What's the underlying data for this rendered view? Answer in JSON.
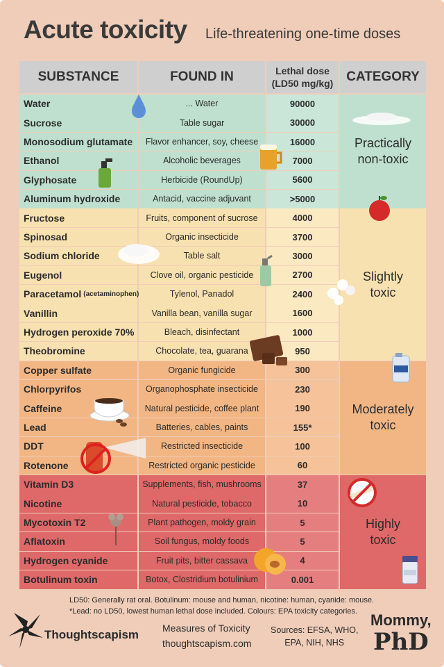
{
  "title": "Acute toxicity",
  "subtitle": "Life-threatening one-time doses",
  "headers": {
    "substance": "SUBSTANCE",
    "found_in": "FOUND IN",
    "lethal_dose_line1": "Lethal dose",
    "lethal_dose_line2": "(LD50 mg/kg)",
    "category": "CATEGORY"
  },
  "colors": {
    "practically_non_toxic": "#bfe0cf",
    "slightly_toxic": "#f8e1b0",
    "moderately_toxic": "#f2b684",
    "highly_toxic": "#df6868",
    "header": "#cfcfcf",
    "background": "#efcdb9"
  },
  "categories": [
    {
      "label": "Practically\nnon-toxic",
      "color": "#bfe0cf"
    },
    {
      "label": "Slightly\ntoxic",
      "color": "#f8e1b0"
    },
    {
      "label": "Moderately\ntoxic",
      "color": "#f2b684"
    },
    {
      "label": "Highly\ntoxic",
      "color": "#df6868"
    }
  ],
  "rows": [
    {
      "substance": "Water",
      "found_in": "... Water",
      "ld50": "90000",
      "category": 0
    },
    {
      "substance": "Sucrose",
      "found_in": "Table sugar",
      "ld50": "30000",
      "category": 0
    },
    {
      "substance": "Monosodium glutamate",
      "found_in": "Flavor enhancer, soy, cheese",
      "ld50": "16000",
      "category": 0
    },
    {
      "substance": "Ethanol",
      "found_in": "Alcoholic beverages",
      "ld50": "7000",
      "category": 0
    },
    {
      "substance": "Glyphosate",
      "found_in": "Herbicide (RoundUp)",
      "ld50": "5600",
      "category": 0
    },
    {
      "substance": "Aluminum hydroxide",
      "found_in": "Antacid, vaccine adjuvant",
      "ld50": ">5000",
      "category": 0
    },
    {
      "substance": "Fructose",
      "found_in": "Fruits, component of sucrose",
      "ld50": "4000",
      "category": 1
    },
    {
      "substance": "Spinosad",
      "found_in": "Organic insecticide",
      "ld50": "3700",
      "category": 1
    },
    {
      "substance": "Sodium chloride",
      "found_in": "Table salt",
      "ld50": "3000",
      "category": 1
    },
    {
      "substance": "Eugenol",
      "found_in": "Clove oil, organic pesticide",
      "ld50": "2700",
      "category": 1
    },
    {
      "substance": "Paracetamol",
      "substance_note": "(acetaminophen)",
      "found_in": "Tylenol, Panadol",
      "ld50": "2400",
      "category": 1
    },
    {
      "substance": "Vanillin",
      "found_in": "Vanilla bean, vanilla sugar",
      "ld50": "1600",
      "category": 1
    },
    {
      "substance": "Hydrogen peroxide 70%",
      "found_in": "Bleach, disinfectant",
      "ld50": "1000",
      "category": 1
    },
    {
      "substance": "Theobromine",
      "found_in": "Chocolate, tea, guarana",
      "ld50": "950",
      "category": 1
    },
    {
      "substance": "Copper sulfate",
      "found_in": "Organic fungicide",
      "ld50": "300",
      "category": 2
    },
    {
      "substance": "Chlorpyrifos",
      "found_in": "Organophosphate insecticide",
      "ld50": "230",
      "category": 2
    },
    {
      "substance": "Caffeine",
      "found_in": "Natural pesticide, coffee plant",
      "ld50": "190",
      "category": 2
    },
    {
      "substance": "Lead",
      "found_in": "Batteries, cables, paints",
      "ld50": "155*",
      "category": 2
    },
    {
      "substance": "DDT",
      "found_in": "Restricted insecticide",
      "ld50": "100",
      "category": 2
    },
    {
      "substance": "Rotenone",
      "found_in": "Restricted organic pesticide",
      "ld50": "60",
      "category": 2
    },
    {
      "substance": "Vitamin D3",
      "found_in": "Supplements, fish, mushrooms",
      "ld50": "37",
      "category": 3
    },
    {
      "substance": "Nicotine",
      "found_in": "Natural pesticide, tobacco",
      "ld50": "10",
      "category": 3
    },
    {
      "substance": "Mycotoxin T2",
      "found_in": "Plant pathogen, moldy grain",
      "ld50": "5",
      "category": 3
    },
    {
      "substance": "Aflatoxin",
      "found_in": "Soil fungus, moldy foods",
      "ld50": "5",
      "category": 3
    },
    {
      "substance": "Hydrogen cyanide",
      "found_in": "Fruit pits, bitter cassava",
      "ld50": "4",
      "category": 3
    },
    {
      "substance": "Botulinum toxin",
      "found_in": "Botox, Clostridium botulinium",
      "ld50": "0.001",
      "category": 3
    }
  ],
  "chart_data": {
    "type": "table",
    "columns": [
      "SUBSTANCE",
      "FOUND IN",
      "Lethal dose (LD50 mg/kg)",
      "CATEGORY"
    ],
    "substances": [
      "Water",
      "Sucrose",
      "Monosodium glutamate",
      "Ethanol",
      "Glyphosate",
      "Aluminum hydroxide",
      "Fructose",
      "Spinosad",
      "Sodium chloride",
      "Eugenol",
      "Paracetamol (acetaminophen)",
      "Vanillin",
      "Hydrogen peroxide 70%",
      "Theobromine",
      "Copper sulfate",
      "Chlorpyrifos",
      "Caffeine",
      "Lead",
      "DDT",
      "Rotenone",
      "Vitamin D3",
      "Nicotine",
      "Mycotoxin T2",
      "Aflatoxin",
      "Hydrogen cyanide",
      "Botulinum toxin"
    ],
    "ld50_values": [
      "90000",
      "30000",
      "16000",
      "7000",
      "5600",
      ">5000",
      "4000",
      "3700",
      "3000",
      "2700",
      "2400",
      "1600",
      "1000",
      "950",
      "300",
      "230",
      "190",
      "155*",
      "100",
      "60",
      "37",
      "10",
      "5",
      "5",
      "4",
      "0.001"
    ],
    "categories": [
      "Practically non-toxic",
      "Slightly toxic",
      "Moderately toxic",
      "Highly toxic"
    ]
  },
  "footer": {
    "note_line1": "LD50: Generally rat oral. Botulinum: mouse and human, nicotine: human, cyanide: mouse.",
    "note_line2": "*Lead: no LD50, lowest human lethal dose included. Colours: EPA toxicity categories.",
    "brand": "Thoughtscapism",
    "measures": "Measures of Toxicity",
    "site": "thoughtscapism.com",
    "sources_line1": "Sources: EFSA, WHO,",
    "sources_line2": "EPA, NIH, NHS",
    "logo_text_top": "Mommy,",
    "logo_text_bottom": "PhD"
  },
  "icons": [
    "water-drop-icon",
    "sugar-pile-icon",
    "beer-mug-icon",
    "spray-bottle-icon",
    "apple-icon",
    "salt-pile-icon",
    "pesticide-spray-icon",
    "pills-icon",
    "chocolate-icon",
    "chemical-jug-icon",
    "coffee-cup-icon",
    "banned-spray-icon",
    "no-smoking-icon",
    "dried-flower-icon",
    "apricot-icon",
    "vial-icon"
  ]
}
